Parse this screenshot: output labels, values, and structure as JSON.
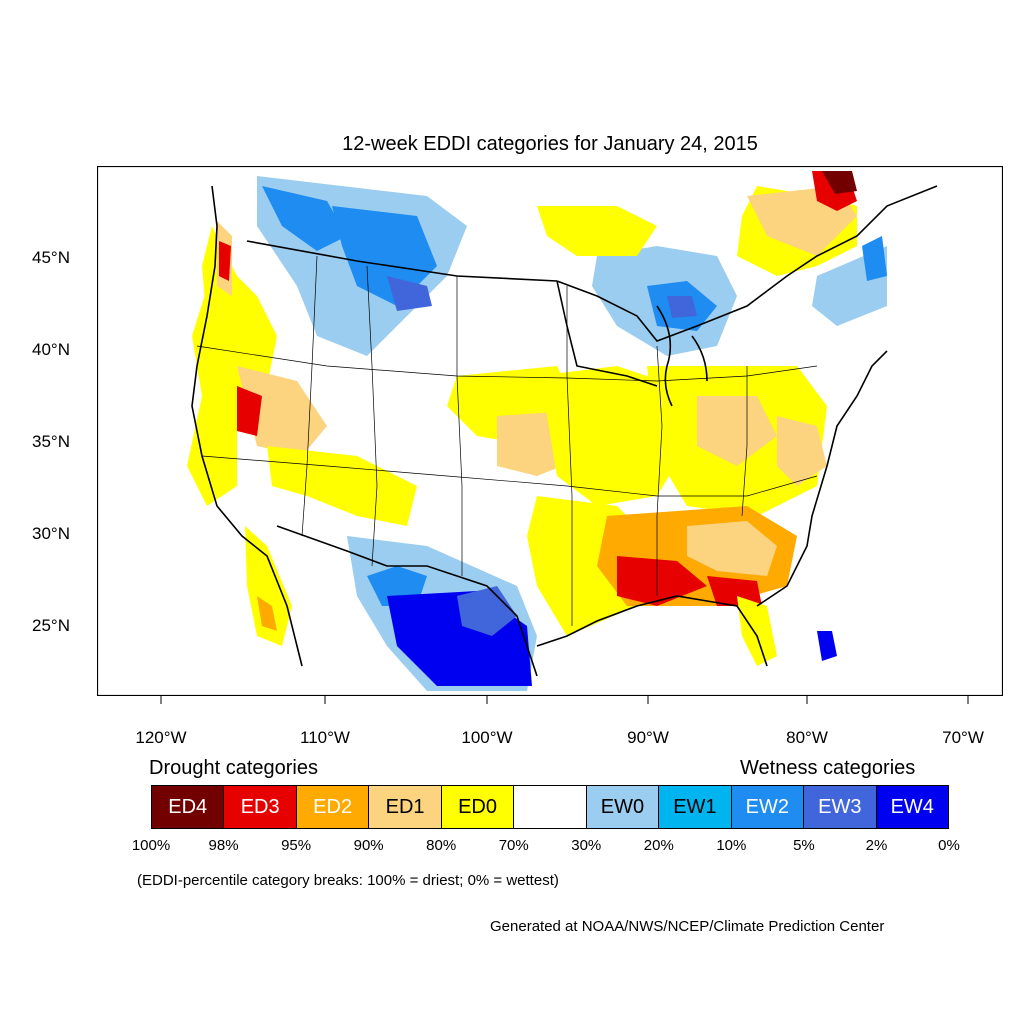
{
  "title": "12-week EDDI categories for January 24, 2015",
  "lat_labels": [
    "45°N",
    "40°N",
    "35°N",
    "30°N",
    "25°N"
  ],
  "lon_labels": [
    "120°W",
    "110°W",
    "100°W",
    "90°W",
    "80°W",
    "70°W"
  ],
  "legend": {
    "drought_heading": "Drought categories",
    "wetness_heading": "Wetness categories",
    "categories": [
      {
        "label": "ED4",
        "color": "#730000",
        "text_color": "#ffffff"
      },
      {
        "label": "ED3",
        "color": "#e60000",
        "text_color": "#ffffff"
      },
      {
        "label": "ED2",
        "color": "#ffaa00",
        "text_color": "#ffffff"
      },
      {
        "label": "ED1",
        "color": "#fcd37f",
        "text_color": "#000000"
      },
      {
        "label": "ED0",
        "color": "#ffff00",
        "text_color": "#000000"
      },
      {
        "label": "",
        "color": "#ffffff",
        "text_color": "#000000"
      },
      {
        "label": "EW0",
        "color": "#9bcdf0",
        "text_color": "#000000"
      },
      {
        "label": "EW1",
        "color": "#00b4f0",
        "text_color": "#000000"
      },
      {
        "label": "EW2",
        "color": "#1e8cf0",
        "text_color": "#ffffff"
      },
      {
        "label": "EW3",
        "color": "#4166dc",
        "text_color": "#ffffff"
      },
      {
        "label": "EW4",
        "color": "#0000f0",
        "text_color": "#ffffff"
      }
    ],
    "breaks": [
      "100%",
      "98%",
      "95%",
      "90%",
      "80%",
      "70%",
      "30%",
      "20%",
      "10%",
      "5%",
      "2%",
      "0%"
    ]
  },
  "note": "(EDDI-percentile category breaks: 100% = driest; 0% = wettest)",
  "credit": "Generated at NOAA/NWS/NCEP/Climate Prediction Center"
}
